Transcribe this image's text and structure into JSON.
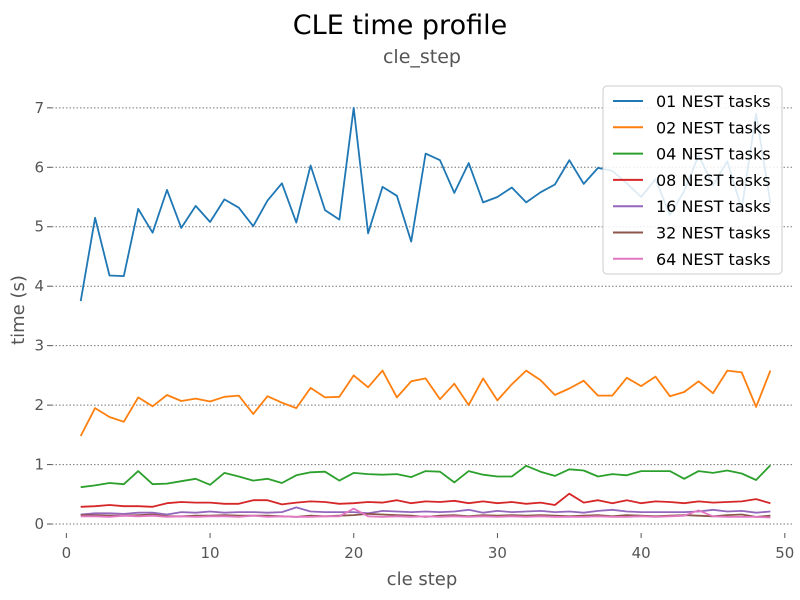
{
  "chart_data": {
    "type": "line",
    "title": "CLE time profile",
    "subtitle": "cle_step",
    "xlabel": "cle step",
    "ylabel": "time (s)",
    "xlim": [
      -1,
      50.5
    ],
    "ylim": [
      -0.05,
      7.3
    ],
    "xticks": [
      0,
      10,
      20,
      30,
      40,
      50
    ],
    "yticks": [
      0,
      1,
      2,
      3,
      4,
      5,
      6,
      7
    ],
    "grid": "horizontal dotted",
    "legend_position": "top-right",
    "x": [
      1,
      2,
      3,
      4,
      5,
      6,
      7,
      8,
      9,
      10,
      11,
      12,
      13,
      14,
      15,
      16,
      17,
      18,
      19,
      20,
      21,
      22,
      23,
      24,
      25,
      26,
      27,
      28,
      29,
      30,
      31,
      32,
      33,
      34,
      35,
      36,
      37,
      38,
      39,
      40,
      41,
      42,
      43,
      44,
      45,
      46,
      47,
      48,
      49
    ],
    "series": [
      {
        "name": "01 NEST tasks",
        "color": "#1f77b4",
        "values": [
          3.75,
          5.15,
          4.18,
          4.17,
          5.3,
          4.9,
          5.62,
          4.98,
          5.35,
          5.08,
          5.46,
          5.32,
          5.01,
          5.44,
          5.73,
          5.07,
          6.03,
          5.28,
          5.12,
          7.0,
          4.89,
          5.67,
          5.52,
          4.75,
          6.23,
          6.12,
          5.57,
          6.07,
          5.41,
          5.5,
          5.66,
          5.41,
          5.58,
          5.71,
          6.12,
          5.72,
          5.99,
          5.94,
          5.73,
          5.5,
          5.8,
          5.2,
          5.6,
          6.2,
          5.7,
          6.1,
          5.3,
          6.9,
          5.4
        ]
      },
      {
        "name": "02 NEST tasks",
        "color": "#ff7f0e",
        "values": [
          1.48,
          1.95,
          1.8,
          1.72,
          2.13,
          1.98,
          2.17,
          2.07,
          2.11,
          2.06,
          2.14,
          2.16,
          1.85,
          2.15,
          2.04,
          1.95,
          2.29,
          2.13,
          2.14,
          2.5,
          2.3,
          2.58,
          2.13,
          2.4,
          2.45,
          2.1,
          2.36,
          2.0,
          2.45,
          2.08,
          2.35,
          2.58,
          2.42,
          2.17,
          2.28,
          2.41,
          2.16,
          2.16,
          2.46,
          2.32,
          2.48,
          2.15,
          2.22,
          2.4,
          2.2,
          2.58,
          2.55,
          1.97,
          2.58
        ]
      },
      {
        "name": "04 NEST tasks",
        "color": "#2ca02c",
        "values": [
          0.62,
          0.65,
          0.69,
          0.67,
          0.89,
          0.67,
          0.68,
          0.72,
          0.76,
          0.66,
          0.86,
          0.8,
          0.73,
          0.76,
          0.69,
          0.82,
          0.87,
          0.88,
          0.73,
          0.86,
          0.84,
          0.83,
          0.84,
          0.79,
          0.89,
          0.88,
          0.7,
          0.89,
          0.83,
          0.8,
          0.8,
          0.98,
          0.88,
          0.81,
          0.92,
          0.9,
          0.8,
          0.84,
          0.82,
          0.89,
          0.89,
          0.89,
          0.76,
          0.89,
          0.86,
          0.9,
          0.85,
          0.74,
          0.99
        ]
      },
      {
        "name": "08 NEST tasks",
        "color": "#d62728",
        "values": [
          0.29,
          0.3,
          0.32,
          0.3,
          0.3,
          0.29,
          0.35,
          0.37,
          0.36,
          0.36,
          0.34,
          0.34,
          0.4,
          0.4,
          0.33,
          0.36,
          0.38,
          0.37,
          0.34,
          0.35,
          0.37,
          0.36,
          0.4,
          0.35,
          0.38,
          0.37,
          0.39,
          0.35,
          0.38,
          0.35,
          0.37,
          0.34,
          0.36,
          0.32,
          0.51,
          0.36,
          0.4,
          0.35,
          0.4,
          0.35,
          0.38,
          0.37,
          0.35,
          0.38,
          0.36,
          0.37,
          0.38,
          0.42,
          0.35
        ]
      },
      {
        "name": "16 NEST tasks",
        "color": "#9467bd",
        "values": [
          0.16,
          0.18,
          0.18,
          0.17,
          0.19,
          0.19,
          0.16,
          0.2,
          0.19,
          0.21,
          0.19,
          0.2,
          0.2,
          0.19,
          0.2,
          0.28,
          0.21,
          0.2,
          0.2,
          0.2,
          0.18,
          0.22,
          0.21,
          0.2,
          0.21,
          0.2,
          0.21,
          0.24,
          0.19,
          0.22,
          0.2,
          0.21,
          0.22,
          0.2,
          0.21,
          0.19,
          0.22,
          0.24,
          0.21,
          0.2,
          0.2,
          0.2,
          0.2,
          0.21,
          0.24,
          0.21,
          0.22,
          0.19,
          0.21
        ]
      },
      {
        "name": "32 NEST tasks",
        "color": "#8c564b",
        "values": [
          0.15,
          0.15,
          0.14,
          0.14,
          0.15,
          0.16,
          0.13,
          0.13,
          0.14,
          0.14,
          0.15,
          0.14,
          0.14,
          0.14,
          0.13,
          0.12,
          0.14,
          0.13,
          0.14,
          0.15,
          0.17,
          0.16,
          0.15,
          0.14,
          0.12,
          0.14,
          0.15,
          0.13,
          0.15,
          0.14,
          0.15,
          0.14,
          0.15,
          0.14,
          0.13,
          0.14,
          0.15,
          0.13,
          0.15,
          0.14,
          0.13,
          0.14,
          0.15,
          0.14,
          0.13,
          0.15,
          0.16,
          0.12,
          0.14
        ]
      },
      {
        "name": "64 NEST tasks",
        "color": "#e377c2",
        "values": [
          0.13,
          0.13,
          0.12,
          0.14,
          0.13,
          0.14,
          0.12,
          0.13,
          0.12,
          0.13,
          0.13,
          0.12,
          0.14,
          0.12,
          0.13,
          0.12,
          0.12,
          0.13,
          0.13,
          0.26,
          0.13,
          0.12,
          0.13,
          0.12,
          0.13,
          0.12,
          0.13,
          0.12,
          0.13,
          0.12,
          0.13,
          0.12,
          0.13,
          0.12,
          0.12,
          0.12,
          0.13,
          0.12,
          0.12,
          0.13,
          0.12,
          0.13,
          0.14,
          0.23,
          0.13,
          0.12,
          0.12,
          0.12,
          0.11
        ]
      }
    ]
  }
}
